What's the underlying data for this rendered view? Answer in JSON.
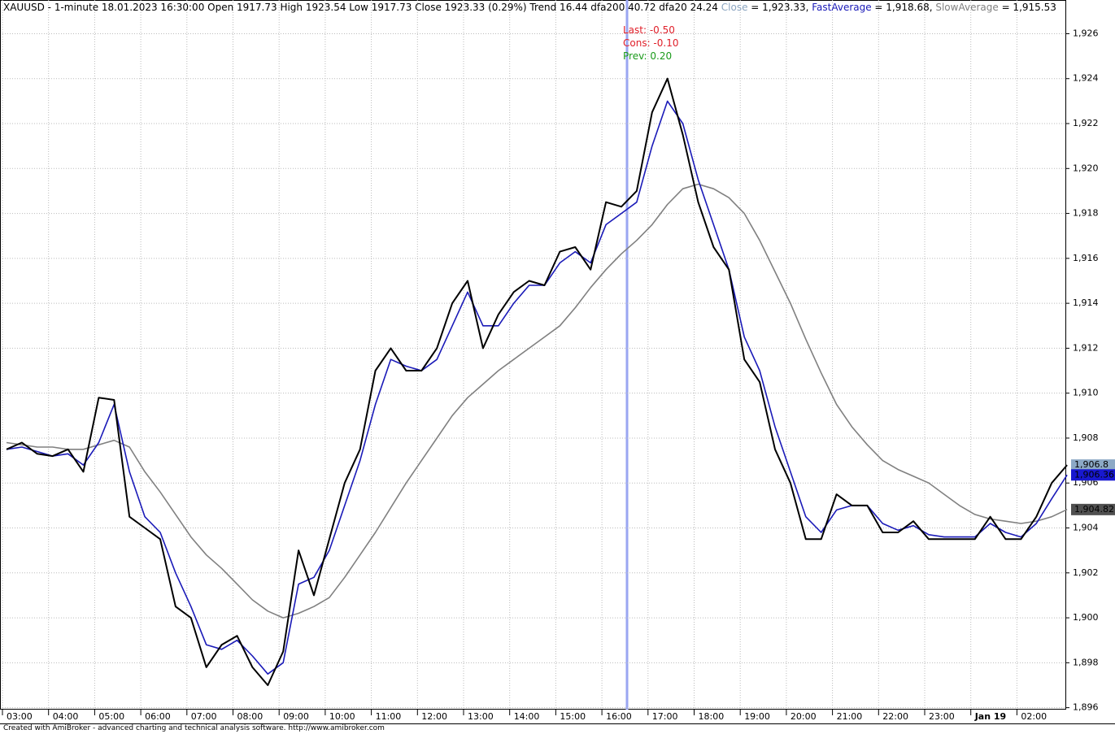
{
  "chart_data": {
    "type": "line",
    "header": "XAUUSD - 1-minute 18.01.2023 16:30:00 Open 1917.73 High 1923.54 Low 1917.73 Close 1923.33 (0.29%) Trend 16.44 dfa200 40.72 dfa20 24.24 ",
    "annotations": [
      {
        "text": "Last: -0.50",
        "color": "#e0202a"
      },
      {
        "text": "Cons: -0.10",
        "color": "#e0202a"
      },
      {
        "text": "Prev: 0.20",
        "color": "#1a9a1a"
      }
    ],
    "footer": "Created with AmiBroker - advanced charting and technical analysis software. http://www.amibroker.com",
    "categories": [
      "03:00",
      null,
      null,
      "04:00",
      null,
      null,
      "05:00",
      null,
      null,
      "06:00",
      null,
      null,
      "07:00",
      null,
      null,
      "08:00",
      null,
      null,
      "09:00",
      null,
      null,
      "10:00",
      null,
      null,
      "11:00",
      null,
      null,
      "12:00",
      null,
      null,
      "13:00",
      null,
      null,
      "14:00",
      null,
      null,
      "15:00",
      null,
      null,
      "16:00",
      null,
      null,
      "17:00",
      null,
      null,
      "18:00",
      null,
      null,
      "19:00",
      null,
      null,
      "20:00",
      null,
      null,
      "21:00",
      null,
      null,
      "22:00",
      null,
      null,
      "23:00",
      null,
      null,
      "Jan 19",
      null,
      null,
      "02:00",
      null,
      null,
      null
    ],
    "series": [
      {
        "name": "Close",
        "color": "#000000",
        "legend_color": "#8aa4c0",
        "cursor_value": " = 1,923.33, ",
        "last_label": "1,906.8",
        "label_fill": "#8ca9c6",
        "label_text": "#000000",
        "values": [
          1907.5,
          1907.8,
          1907.3,
          1907.2,
          1907.5,
          1906.5,
          1909.8,
          1909.7,
          1904.5,
          1904,
          1903.5,
          1900.5,
          1900,
          1897.8,
          1898.8,
          1899.2,
          1897.8,
          1897,
          1898.5,
          1903,
          1901,
          1903.5,
          1906,
          1907.5,
          1911,
          1912,
          1911,
          1911,
          1912,
          1914,
          1915,
          1912,
          1913.5,
          1914.5,
          1915,
          1914.8,
          1916.3,
          1916.5,
          1915.5,
          1918.5,
          1918.3,
          1919,
          1922.5,
          1924,
          1921.5,
          1918.5,
          1916.5,
          1915.5,
          1911.5,
          1910.5,
          1907.5,
          1906,
          1903.5,
          1903.5,
          1905.5,
          1905,
          1905,
          1903.8,
          1903.8,
          1904.3,
          1903.5,
          1903.5,
          1903.5,
          1903.5,
          1904.5,
          1903.5,
          1903.5,
          1904.5,
          1906,
          1906.8
        ]
      },
      {
        "name": "FastAverage",
        "color": "#1a1ab8",
        "legend_color": "#1a1ab8",
        "cursor_value": " = 1,918.68, ",
        "last_label": "1,906.36",
        "label_fill": "#1818d0",
        "label_text": "#ffffff",
        "values": [
          1907.5,
          1907.6,
          1907.4,
          1907.2,
          1907.3,
          1906.8,
          1907.8,
          1909.5,
          1906.5,
          1904.5,
          1903.8,
          1902,
          1900.5,
          1898.8,
          1898.6,
          1899,
          1898.3,
          1897.5,
          1898,
          1901.5,
          1901.8,
          1903,
          1905,
          1907,
          1909.5,
          1911.5,
          1911.2,
          1911,
          1911.5,
          1913,
          1914.5,
          1913,
          1913,
          1914,
          1914.8,
          1914.8,
          1915.8,
          1916.3,
          1915.8,
          1917.5,
          1918,
          1918.5,
          1921,
          1923,
          1922,
          1919.5,
          1917.5,
          1915.5,
          1912.5,
          1911,
          1908.5,
          1906.5,
          1904.5,
          1903.8,
          1904.8,
          1905,
          1905,
          1904.2,
          1903.9,
          1904.1,
          1903.7,
          1903.6,
          1903.6,
          1903.6,
          1904.2,
          1903.8,
          1903.6,
          1904.2,
          1905.3,
          1906.36
        ]
      },
      {
        "name": "SlowAverage",
        "color": "#808080",
        "legend_color": "#808080",
        "cursor_value": " = 1,915.53",
        "last_label": "1,904.82",
        "label_fill": "#505050",
        "label_text": "#ffffff",
        "values": [
          1907.8,
          1907.7,
          1907.6,
          1907.6,
          1907.5,
          1907.5,
          1907.7,
          1907.9,
          1907.6,
          1906.5,
          1905.6,
          1904.6,
          1903.6,
          1902.8,
          1902.2,
          1901.5,
          1900.8,
          1900.3,
          1900,
          1900.2,
          1900.5,
          1900.9,
          1901.8,
          1902.8,
          1903.8,
          1904.9,
          1906,
          1907,
          1908,
          1909,
          1909.8,
          1910.4,
          1911,
          1911.5,
          1912,
          1912.5,
          1913,
          1913.8,
          1914.7,
          1915.5,
          1916.2,
          1916.8,
          1917.5,
          1918.4,
          1919.1,
          1919.3,
          1919.1,
          1918.7,
          1918,
          1916.8,
          1915.4,
          1914,
          1912.4,
          1910.9,
          1909.5,
          1908.5,
          1907.7,
          1907,
          1906.6,
          1906.3,
          1906,
          1905.5,
          1905,
          1904.6,
          1904.4,
          1904.3,
          1904.2,
          1904.3,
          1904.5,
          1904.82
        ]
      }
    ],
    "ylim": [
      1895.95,
      1927.5
    ],
    "yticks": [
      {
        "value": 1896,
        "label": "1,896"
      },
      {
        "value": 1898,
        "label": "1,898"
      },
      {
        "value": 1900,
        "label": "1,900"
      },
      {
        "value": 1902,
        "label": "1,902"
      },
      {
        "value": 1904,
        "label": "1,904"
      },
      {
        "value": 1906,
        "label": "1,906"
      },
      {
        "value": 1908,
        "label": "1,908"
      },
      {
        "value": 1910,
        "label": "1,910"
      },
      {
        "value": 1912,
        "label": "1,912"
      },
      {
        "value": 1914,
        "label": "1,914"
      },
      {
        "value": 1916,
        "label": "1,916"
      },
      {
        "value": 1918,
        "label": "1,918"
      },
      {
        "value": 1920,
        "label": "1,920"
      },
      {
        "value": 1922,
        "label": "1,922"
      },
      {
        "value": 1924,
        "label": "1,924"
      },
      {
        "value": 1926,
        "label": "1,926"
      }
    ],
    "grid": true
  }
}
